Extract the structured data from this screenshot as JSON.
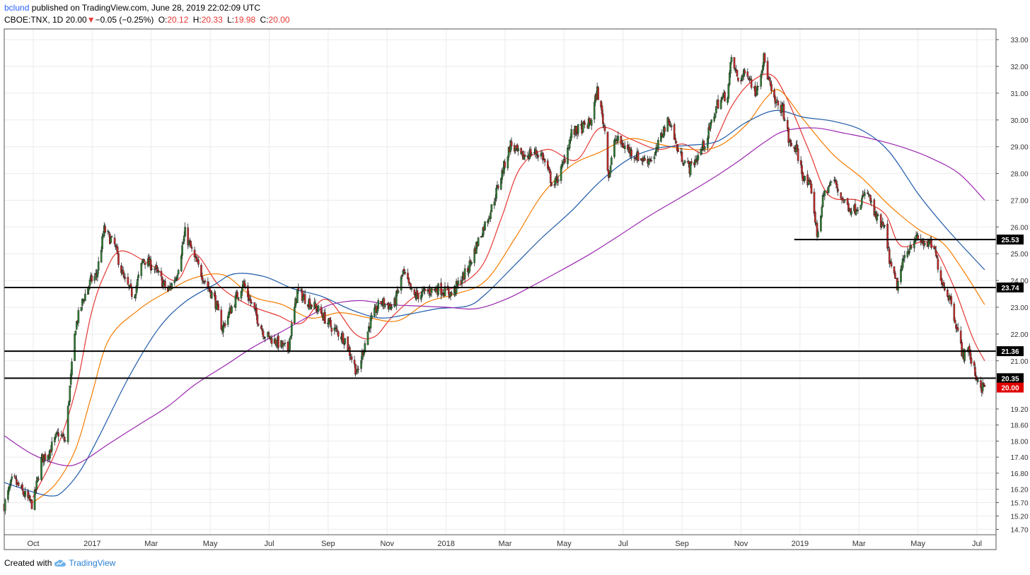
{
  "header": {
    "user": "bclund",
    "published": "published on TradingView.com, June 28, 2019 22:02:09 UTC",
    "symbol": "CBOE:TNX, 1D",
    "last": "20.00",
    "change": "−0.05 (−0.25%)",
    "open_label": "O:",
    "open": "20.12",
    "high_label": "H:",
    "high": "20.33",
    "low_label": "L:",
    "low": "19.98",
    "close_label": "C:",
    "close": "20.00"
  },
  "footer": {
    "created_with": "Created with",
    "brand": "TradingView",
    "logo_icon": "tradingview-cloud-icon"
  },
  "colors": {
    "up": "#2e7d32",
    "down": "#c62828",
    "ema_fast": "#e53935",
    "ema_mid": "#f57c00",
    "sma_100": "#1e5aa8",
    "sma_200": "#9c27b0",
    "price_label_bg": "#e00000",
    "grid": "#ebebeb"
  },
  "chart_data": {
    "type": "candlestick",
    "symbol": "CBOE:TNX",
    "interval": "1D",
    "ylim": [
      14.5,
      33.4
    ],
    "y_ticks": [
      "33.00",
      "32.00",
      "31.00",
      "30.00",
      "29.00",
      "28.00",
      "27.00",
      "26.00",
      "25.00",
      "24.00",
      "23.00",
      "22.00",
      "21.00",
      "19.20",
      "18.60",
      "18.00",
      "17.40",
      "16.80",
      "16.20",
      "15.70",
      "15.20",
      "14.70"
    ],
    "x_ticks": [
      "Oct",
      "2017",
      "Mar",
      "May",
      "Jul",
      "Sep",
      "Nov",
      "2018",
      "Mar",
      "May",
      "Jul",
      "Sep",
      "Nov",
      "2019",
      "Mar",
      "May",
      "Jul"
    ],
    "x_range": [
      "2016-09-01",
      "2019-07-10"
    ],
    "last_price": "20.00",
    "horizontal_levels": [
      {
        "value": 25.53,
        "label": "25.53",
        "from": "2018-12-10"
      },
      {
        "value": 23.74,
        "label": "23.74",
        "from": "2016-09-01"
      },
      {
        "value": 21.36,
        "label": "21.36",
        "from": "2016-09-01"
      },
      {
        "value": 20.35,
        "label": "20.35",
        "from": "2016-09-01"
      }
    ],
    "price_anchors": [
      [
        "2016-09-01",
        15.6
      ],
      [
        "2016-09-10",
        16.6
      ],
      [
        "2016-09-22",
        16.0
      ],
      [
        "2016-10-01",
        15.6
      ],
      [
        "2016-10-10",
        17.3
      ],
      [
        "2016-10-18",
        17.6
      ],
      [
        "2016-10-28",
        18.3
      ],
      [
        "2016-11-04",
        18.0
      ],
      [
        "2016-11-09",
        20.0
      ],
      [
        "2016-11-15",
        22.3
      ],
      [
        "2016-11-23",
        23.3
      ],
      [
        "2016-12-01",
        24.0
      ],
      [
        "2016-12-07",
        24.2
      ],
      [
        "2016-12-15",
        25.9
      ],
      [
        "2016-12-26",
        25.3
      ],
      [
        "2017-01-05",
        24.0
      ],
      [
        "2017-01-15",
        23.4
      ],
      [
        "2017-01-25",
        24.8
      ],
      [
        "2017-02-05",
        24.5
      ],
      [
        "2017-02-20",
        23.6
      ],
      [
        "2017-03-01",
        24.2
      ],
      [
        "2017-03-10",
        25.8
      ],
      [
        "2017-03-20",
        24.8
      ],
      [
        "2017-04-01",
        23.9
      ],
      [
        "2017-04-10",
        23.3
      ],
      [
        "2017-04-18",
        22.2
      ],
      [
        "2017-04-28",
        23.0
      ],
      [
        "2017-05-10",
        23.9
      ],
      [
        "2017-05-20",
        23.0
      ],
      [
        "2017-06-01",
        22.0
      ],
      [
        "2017-06-14",
        21.7
      ],
      [
        "2017-06-26",
        21.4
      ],
      [
        "2017-07-06",
        23.6
      ],
      [
        "2017-07-18",
        23.2
      ],
      [
        "2017-07-28",
        22.9
      ],
      [
        "2017-08-10",
        22.3
      ],
      [
        "2017-08-25",
        21.8
      ],
      [
        "2017-09-07",
        20.5
      ],
      [
        "2017-09-20",
        22.4
      ],
      [
        "2017-10-01",
        23.2
      ],
      [
        "2017-10-15",
        23.0
      ],
      [
        "2017-10-25",
        24.3
      ],
      [
        "2017-11-05",
        23.4
      ],
      [
        "2017-11-20",
        23.6
      ],
      [
        "2017-12-01",
        23.7
      ],
      [
        "2017-12-15",
        23.5
      ],
      [
        "2018-01-01",
        24.4
      ],
      [
        "2018-01-12",
        25.5
      ],
      [
        "2018-01-25",
        26.6
      ],
      [
        "2018-02-05",
        27.9
      ],
      [
        "2018-02-15",
        29.1
      ],
      [
        "2018-02-26",
        28.6
      ],
      [
        "2018-03-10",
        28.8
      ],
      [
        "2018-03-20",
        28.7
      ],
      [
        "2018-04-01",
        27.5
      ],
      [
        "2018-04-10",
        28.2
      ],
      [
        "2018-04-20",
        29.5
      ],
      [
        "2018-05-01",
        29.7
      ],
      [
        "2018-05-10",
        29.9
      ],
      [
        "2018-05-17",
        31.1
      ],
      [
        "2018-05-25",
        29.6
      ],
      [
        "2018-05-29",
        27.9
      ],
      [
        "2018-06-05",
        29.3
      ],
      [
        "2018-06-15",
        29.0
      ],
      [
        "2018-06-25",
        28.7
      ],
      [
        "2018-07-05",
        28.5
      ],
      [
        "2018-07-16",
        28.6
      ],
      [
        "2018-07-25",
        29.6
      ],
      [
        "2018-08-01",
        30.0
      ],
      [
        "2018-08-10",
        28.8
      ],
      [
        "2018-08-22",
        28.2
      ],
      [
        "2018-09-01",
        28.7
      ],
      [
        "2018-09-10",
        29.4
      ],
      [
        "2018-09-20",
        30.6
      ],
      [
        "2018-10-01",
        31.0
      ],
      [
        "2018-10-05",
        32.3
      ],
      [
        "2018-10-12",
        31.5
      ],
      [
        "2018-10-22",
        31.8
      ],
      [
        "2018-10-30",
        31.0
      ],
      [
        "2018-11-08",
        32.3
      ],
      [
        "2018-11-18",
        30.7
      ],
      [
        "2018-11-28",
        30.4
      ],
      [
        "2018-12-05",
        29.1
      ],
      [
        "2018-12-12",
        28.9
      ],
      [
        "2018-12-20",
        27.8
      ],
      [
        "2018-12-28",
        27.4
      ],
      [
        "2019-01-03",
        25.7
      ],
      [
        "2019-01-10",
        27.2
      ],
      [
        "2019-01-20",
        27.8
      ],
      [
        "2019-01-30",
        27.0
      ],
      [
        "2019-02-10",
        26.6
      ],
      [
        "2019-02-25",
        27.3
      ],
      [
        "2019-03-05",
        26.4
      ],
      [
        "2019-03-15",
        25.9
      ],
      [
        "2019-03-22",
        24.4
      ],
      [
        "2019-03-28",
        23.8
      ],
      [
        "2019-04-05",
        24.9
      ],
      [
        "2019-04-15",
        25.6
      ],
      [
        "2019-04-25",
        25.4
      ],
      [
        "2019-05-05",
        25.3
      ],
      [
        "2019-05-14",
        24.0
      ],
      [
        "2019-05-24",
        23.2
      ],
      [
        "2019-05-30",
        22.2
      ],
      [
        "2019-06-05",
        21.2
      ],
      [
        "2019-06-10",
        21.5
      ],
      [
        "2019-06-18",
        20.5
      ],
      [
        "2019-06-25",
        20.0
      ],
      [
        "2019-06-28",
        20.0
      ]
    ],
    "series": [
      {
        "name": "",
        "type": "ema",
        "color": "ema_fast",
        "points": [
          [
            "2016-10-01",
            15.9
          ],
          [
            "2016-10-25",
            17.6
          ],
          [
            "2016-11-15",
            19.9
          ],
          [
            "2016-12-01",
            22.7
          ],
          [
            "2016-12-15",
            24.2
          ],
          [
            "2017-01-01",
            25.1
          ],
          [
            "2017-02-01",
            24.6
          ],
          [
            "2017-03-01",
            24.0
          ],
          [
            "2017-03-20",
            25.0
          ],
          [
            "2017-04-15",
            23.8
          ],
          [
            "2017-05-15",
            23.1
          ],
          [
            "2017-06-15",
            22.7
          ],
          [
            "2017-07-10",
            22.4
          ],
          [
            "2017-08-05",
            23.3
          ],
          [
            "2017-09-05",
            22.0
          ],
          [
            "2017-09-25",
            21.9
          ],
          [
            "2017-10-15",
            22.7
          ],
          [
            "2017-11-15",
            23.6
          ],
          [
            "2017-12-15",
            23.7
          ],
          [
            "2018-01-15",
            24.5
          ],
          [
            "2018-02-05",
            26.3
          ],
          [
            "2018-02-25",
            28.2
          ],
          [
            "2018-03-25",
            28.9
          ],
          [
            "2018-04-25",
            28.5
          ],
          [
            "2018-05-20",
            29.7
          ],
          [
            "2018-06-20",
            29.3
          ],
          [
            "2018-07-20",
            28.9
          ],
          [
            "2018-08-15",
            29.1
          ],
          [
            "2018-09-10",
            28.8
          ],
          [
            "2018-10-05",
            30.5
          ],
          [
            "2018-10-25",
            31.4
          ],
          [
            "2018-11-15",
            31.7
          ],
          [
            "2018-12-01",
            30.9
          ],
          [
            "2018-12-25",
            28.9
          ],
          [
            "2019-01-15",
            27.2
          ],
          [
            "2019-02-15",
            27.0
          ],
          [
            "2019-03-15",
            26.5
          ],
          [
            "2019-04-01",
            25.3
          ],
          [
            "2019-05-01",
            25.4
          ],
          [
            "2019-05-25",
            23.9
          ],
          [
            "2019-06-15",
            21.9
          ],
          [
            "2019-06-28",
            21.0
          ]
        ]
      },
      {
        "name": "",
        "type": "ema",
        "color": "ema_mid",
        "points": [
          [
            "2016-10-01",
            15.7
          ],
          [
            "2016-10-25",
            16.4
          ],
          [
            "2016-11-15",
            17.7
          ],
          [
            "2016-12-01",
            19.6
          ],
          [
            "2016-12-20",
            21.8
          ],
          [
            "2017-01-20",
            22.9
          ],
          [
            "2017-02-20",
            23.6
          ],
          [
            "2017-03-20",
            24.1
          ],
          [
            "2017-04-20",
            24.2
          ],
          [
            "2017-05-20",
            23.4
          ],
          [
            "2017-06-20",
            23.1
          ],
          [
            "2017-07-20",
            22.6
          ],
          [
            "2017-08-20",
            22.8
          ],
          [
            "2017-09-20",
            22.6
          ],
          [
            "2017-10-20",
            22.5
          ],
          [
            "2017-11-20",
            23.2
          ],
          [
            "2017-12-20",
            23.5
          ],
          [
            "2018-01-20",
            24.0
          ],
          [
            "2018-02-20",
            25.6
          ],
          [
            "2018-03-20",
            27.2
          ],
          [
            "2018-04-20",
            28.3
          ],
          [
            "2018-05-20",
            28.8
          ],
          [
            "2018-06-20",
            29.3
          ],
          [
            "2018-07-20",
            29.1
          ],
          [
            "2018-08-20",
            28.9
          ],
          [
            "2018-09-20",
            29.0
          ],
          [
            "2018-10-20",
            29.8
          ],
          [
            "2018-11-10",
            30.8
          ],
          [
            "2018-11-25",
            31.1
          ],
          [
            "2018-12-20",
            30.0
          ],
          [
            "2019-01-20",
            28.7
          ],
          [
            "2019-02-20",
            27.8
          ],
          [
            "2019-03-20",
            26.8
          ],
          [
            "2019-04-20",
            25.9
          ],
          [
            "2019-05-15",
            25.4
          ],
          [
            "2019-06-05",
            24.4
          ],
          [
            "2019-06-28",
            23.1
          ]
        ]
      },
      {
        "name": "",
        "type": "sma",
        "color": "sma_100",
        "points": [
          [
            "2016-09-01",
            16.45
          ],
          [
            "2016-10-01",
            16.1
          ],
          [
            "2016-10-20",
            15.95
          ],
          [
            "2016-11-01",
            16.1
          ],
          [
            "2016-11-20",
            16.9
          ],
          [
            "2016-12-10",
            18.2
          ],
          [
            "2017-01-10",
            20.4
          ],
          [
            "2017-02-10",
            22.2
          ],
          [
            "2017-03-10",
            23.2
          ],
          [
            "2017-04-10",
            23.85
          ],
          [
            "2017-05-01",
            24.25
          ],
          [
            "2017-06-01",
            24.15
          ],
          [
            "2017-07-01",
            23.7
          ],
          [
            "2017-08-01",
            23.4
          ],
          [
            "2017-09-01",
            22.9
          ],
          [
            "2017-10-01",
            22.6
          ],
          [
            "2017-11-01",
            22.75
          ],
          [
            "2017-12-01",
            22.95
          ],
          [
            "2018-01-01",
            23.05
          ],
          [
            "2018-01-20",
            23.5
          ],
          [
            "2018-02-20",
            24.6
          ],
          [
            "2018-03-20",
            25.6
          ],
          [
            "2018-04-20",
            26.6
          ],
          [
            "2018-05-20",
            27.7
          ],
          [
            "2018-06-20",
            28.55
          ],
          [
            "2018-07-20",
            28.95
          ],
          [
            "2018-08-20",
            29.05
          ],
          [
            "2018-09-20",
            29.2
          ],
          [
            "2018-10-20",
            29.9
          ],
          [
            "2018-11-20",
            30.35
          ],
          [
            "2018-12-20",
            30.1
          ],
          [
            "2019-01-20",
            29.95
          ],
          [
            "2019-02-20",
            29.6
          ],
          [
            "2019-03-20",
            28.8
          ],
          [
            "2019-04-20",
            27.2
          ],
          [
            "2019-05-20",
            25.9
          ],
          [
            "2019-06-28",
            24.4
          ]
        ]
      },
      {
        "name": "",
        "type": "sma",
        "color": "sma_200",
        "points": [
          [
            "2016-09-01",
            18.2
          ],
          [
            "2016-10-01",
            17.5
          ],
          [
            "2016-11-01",
            17.1
          ],
          [
            "2016-11-20",
            17.2
          ],
          [
            "2016-12-20",
            17.9
          ],
          [
            "2017-01-20",
            18.6
          ],
          [
            "2017-02-20",
            19.3
          ],
          [
            "2017-03-20",
            20.1
          ],
          [
            "2017-04-20",
            20.8
          ],
          [
            "2017-05-20",
            21.5
          ],
          [
            "2017-06-20",
            22.1
          ],
          [
            "2017-07-20",
            22.7
          ],
          [
            "2017-08-10",
            23.1
          ],
          [
            "2017-09-10",
            23.25
          ],
          [
            "2017-10-10",
            23.1
          ],
          [
            "2017-11-10",
            23.05
          ],
          [
            "2017-12-10",
            23.0
          ],
          [
            "2018-01-10",
            22.95
          ],
          [
            "2018-02-10",
            23.3
          ],
          [
            "2018-03-10",
            23.8
          ],
          [
            "2018-04-10",
            24.4
          ],
          [
            "2018-05-10",
            25.0
          ],
          [
            "2018-06-10",
            25.7
          ],
          [
            "2018-07-10",
            26.4
          ],
          [
            "2018-08-10",
            27.05
          ],
          [
            "2018-09-10",
            27.7
          ],
          [
            "2018-10-10",
            28.4
          ],
          [
            "2018-11-10",
            29.2
          ],
          [
            "2018-12-01",
            29.6
          ],
          [
            "2019-01-01",
            29.7
          ],
          [
            "2019-02-01",
            29.5
          ],
          [
            "2019-03-01",
            29.3
          ],
          [
            "2019-04-01",
            29.0
          ],
          [
            "2019-05-01",
            28.6
          ],
          [
            "2019-06-01",
            28.0
          ],
          [
            "2019-06-28",
            27.0
          ]
        ]
      }
    ]
  }
}
